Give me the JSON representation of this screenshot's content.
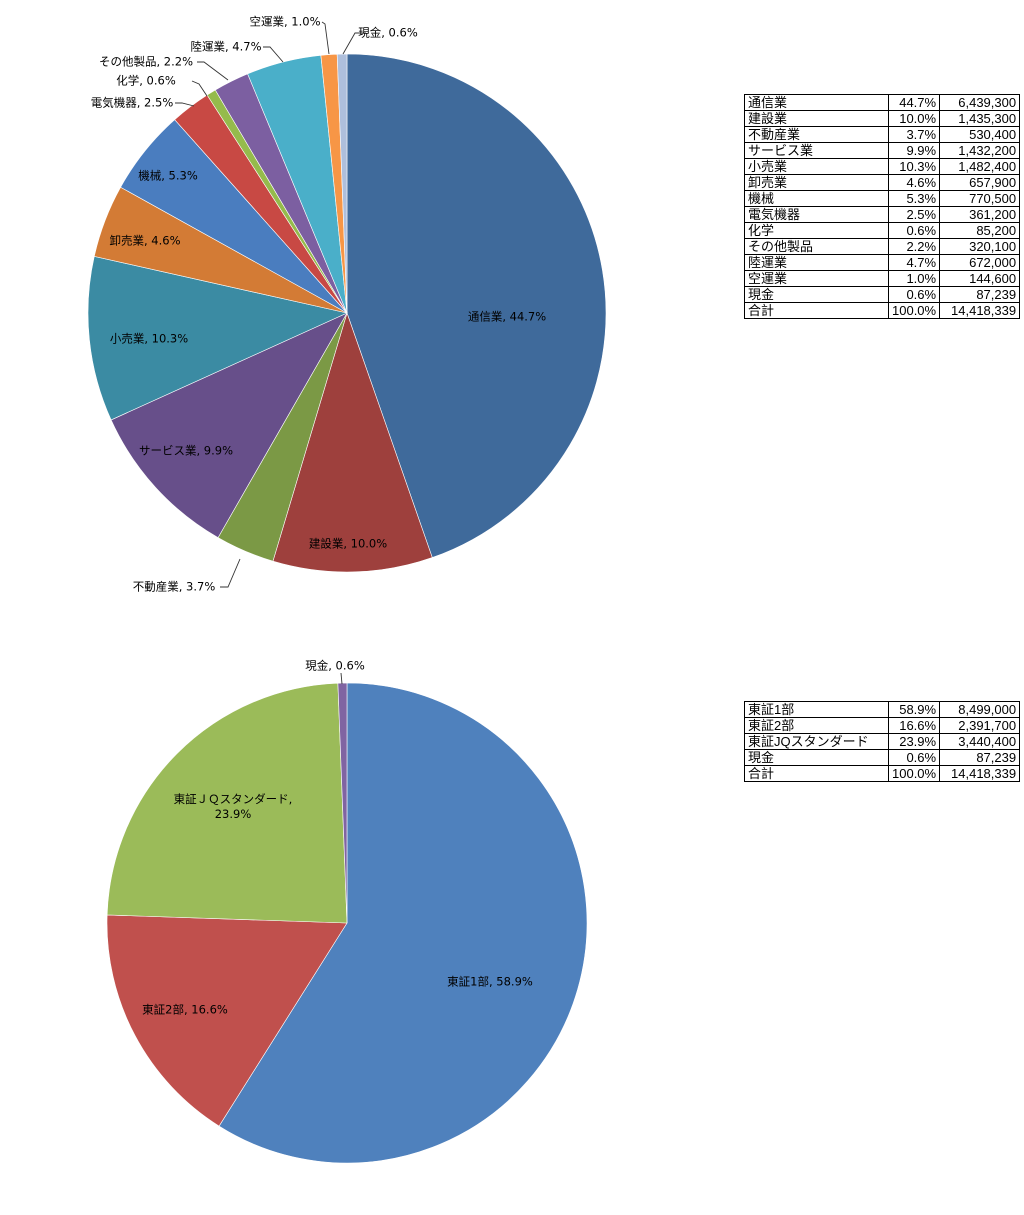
{
  "chart_data": [
    {
      "type": "pie",
      "title": "",
      "categories": [
        "通信業",
        "建設業",
        "不動産業",
        "サービス業",
        "小売業",
        "卸売業",
        "機械",
        "電気機器",
        "化学",
        "その他製品",
        "陸運業",
        "空運業",
        "現金"
      ],
      "values": [
        6439300,
        1435300,
        530400,
        1432200,
        1482400,
        657900,
        770500,
        361200,
        85200,
        320100,
        672000,
        144600,
        87239
      ],
      "labels": [
        "通信業, 44.7%",
        "建設業, 10.0%",
        "不動産業, 3.7%",
        "サービス業, 9.9%",
        "小売業, 10.3%",
        "卸売業, 4.6%",
        "機械, 5.3%",
        "電気機器, 2.5%",
        "化学, 0.6%",
        "その他製品, 2.2%",
        "陸運業, 4.7%",
        "空運業, 1.0%",
        "現金, 0.6%"
      ],
      "colors": [
        "#3f6a9b",
        "#9e403d",
        "#7b9945",
        "#674f8a",
        "#3b8ba3",
        "#d37b35",
        "#4a7dbf",
        "#c84944",
        "#95bb4c",
        "#7c5fa1",
        "#4aafc9",
        "#f79646",
        "#aebfdc"
      ],
      "legend": "none"
    },
    {
      "type": "pie",
      "title": "",
      "categories": [
        "東証1部",
        "東証2部",
        "東証ＪＱスタンダード",
        "現金"
      ],
      "values": [
        8499000,
        2391700,
        3440400,
        87239
      ],
      "labels": [
        "東証1部, 58.9%",
        "東証2部, 16.6%",
        "東証ＪＱスタンダード,|23.9%",
        "現金, 0.6%"
      ],
      "colors": [
        "#4f81bd",
        "#c0504d",
        "#9bbb59",
        "#8064a2"
      ],
      "legend": "none"
    }
  ],
  "tables": [
    {
      "rows": [
        {
          "name": "通信業",
          "pct": "44.7%",
          "value": "6,439,300"
        },
        {
          "name": "建設業",
          "pct": "10.0%",
          "value": "1,435,300"
        },
        {
          "name": "不動産業",
          "pct": "3.7%",
          "value": "530,400"
        },
        {
          "name": "サービス業",
          "pct": "9.9%",
          "value": "1,432,200"
        },
        {
          "name": "小売業",
          "pct": "10.3%",
          "value": "1,482,400"
        },
        {
          "name": "卸売業",
          "pct": "4.6%",
          "value": "657,900"
        },
        {
          "name": "機械",
          "pct": "5.3%",
          "value": "770,500"
        },
        {
          "name": "電気機器",
          "pct": "2.5%",
          "value": "361,200"
        },
        {
          "name": "化学",
          "pct": "0.6%",
          "value": "85,200"
        },
        {
          "name": "その他製品",
          "pct": "2.2%",
          "value": "320,100"
        },
        {
          "name": "陸運業",
          "pct": "4.7%",
          "value": "672,000"
        },
        {
          "name": "空運業",
          "pct": "1.0%",
          "value": "144,600"
        },
        {
          "name": "現金",
          "pct": "0.6%",
          "value": "87,239"
        },
        {
          "name": "合計",
          "pct": "100.0%",
          "value": "14,418,339"
        }
      ]
    },
    {
      "rows": [
        {
          "name": "東証1部",
          "pct": "58.9%",
          "value": "8,499,000"
        },
        {
          "name": "東証2部",
          "pct": "16.6%",
          "value": "2,391,700"
        },
        {
          "name": "東証JQスタンダード",
          "pct": "23.9%",
          "value": "3,440,400"
        },
        {
          "name": "現金",
          "pct": "0.6%",
          "value": "87,239"
        },
        {
          "name": "合計",
          "pct": "100.0%",
          "value": "14,418,339"
        }
      ]
    }
  ]
}
